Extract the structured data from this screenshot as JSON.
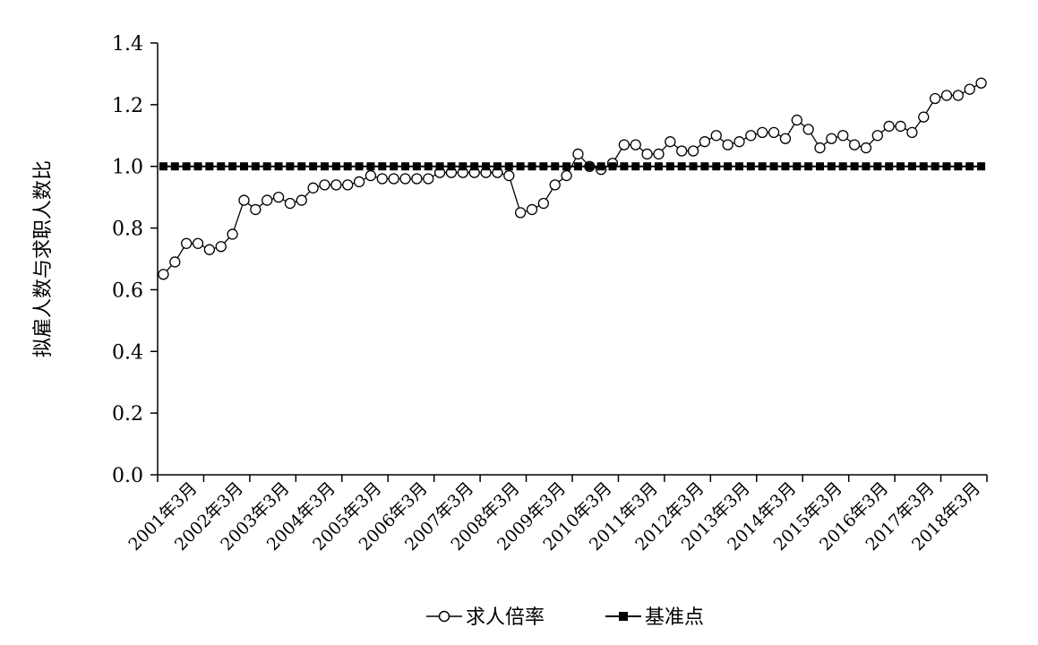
{
  "chart_data": {
    "type": "line",
    "title": "",
    "xlabel": "",
    "ylabel": "拟雇人数与求职人数比",
    "ylim": [
      0,
      1.4
    ],
    "yticks": [
      "0.0",
      "0.2",
      "0.4",
      "0.6",
      "0.8",
      "1.0",
      "1.2",
      "1.4"
    ],
    "xtick_labels": [
      "2001年3月",
      "2002年3月",
      "2003年3月",
      "2004年3月",
      "2005年3月",
      "2006年3月",
      "2007年3月",
      "2008年3月",
      "2009年3月",
      "2010年3月",
      "2011年3月",
      "2012年3月",
      "2013年3月",
      "2014年3月",
      "2015年3月",
      "2016年3月",
      "2017年3月",
      "2018年3月"
    ],
    "grid": false,
    "legend_position": "bottom",
    "series": [
      {
        "name": "求人倍率",
        "marker": "open-circle",
        "color": "#000000",
        "values": [
          0.65,
          0.69,
          0.75,
          0.75,
          0.73,
          0.74,
          0.78,
          0.89,
          0.86,
          0.89,
          0.9,
          0.88,
          0.89,
          0.93,
          0.94,
          0.94,
          0.94,
          0.95,
          0.97,
          0.96,
          0.96,
          0.96,
          0.96,
          0.96,
          0.98,
          0.98,
          0.98,
          0.98,
          0.98,
          0.98,
          0.97,
          0.85,
          0.86,
          0.88,
          0.94,
          0.97,
          1.04,
          1.0,
          0.99,
          1.01,
          1.07,
          1.07,
          1.04,
          1.04,
          1.08,
          1.05,
          1.05,
          1.08,
          1.1,
          1.07,
          1.08,
          1.1,
          1.11,
          1.11,
          1.09,
          1.15,
          1.12,
          1.06,
          1.09,
          1.1,
          1.07,
          1.06,
          1.1,
          1.13,
          1.13,
          1.11,
          1.16,
          1.22,
          1.23,
          1.23,
          1.25,
          1.27
        ]
      },
      {
        "name": "基准点",
        "marker": "filled-square",
        "color": "#000000",
        "values": [
          1.0,
          1.0,
          1.0,
          1.0,
          1.0,
          1.0,
          1.0,
          1.0,
          1.0,
          1.0,
          1.0,
          1.0,
          1.0,
          1.0,
          1.0,
          1.0,
          1.0,
          1.0,
          1.0,
          1.0,
          1.0,
          1.0,
          1.0,
          1.0,
          1.0,
          1.0,
          1.0,
          1.0,
          1.0,
          1.0,
          1.0,
          1.0,
          1.0,
          1.0,
          1.0,
          1.0,
          1.0,
          1.0,
          1.0,
          1.0,
          1.0,
          1.0,
          1.0,
          1.0,
          1.0,
          1.0,
          1.0,
          1.0,
          1.0,
          1.0,
          1.0,
          1.0,
          1.0,
          1.0,
          1.0,
          1.0,
          1.0,
          1.0,
          1.0,
          1.0,
          1.0,
          1.0,
          1.0,
          1.0,
          1.0,
          1.0,
          1.0,
          1.0,
          1.0,
          1.0,
          1.0,
          1.0
        ]
      }
    ]
  }
}
